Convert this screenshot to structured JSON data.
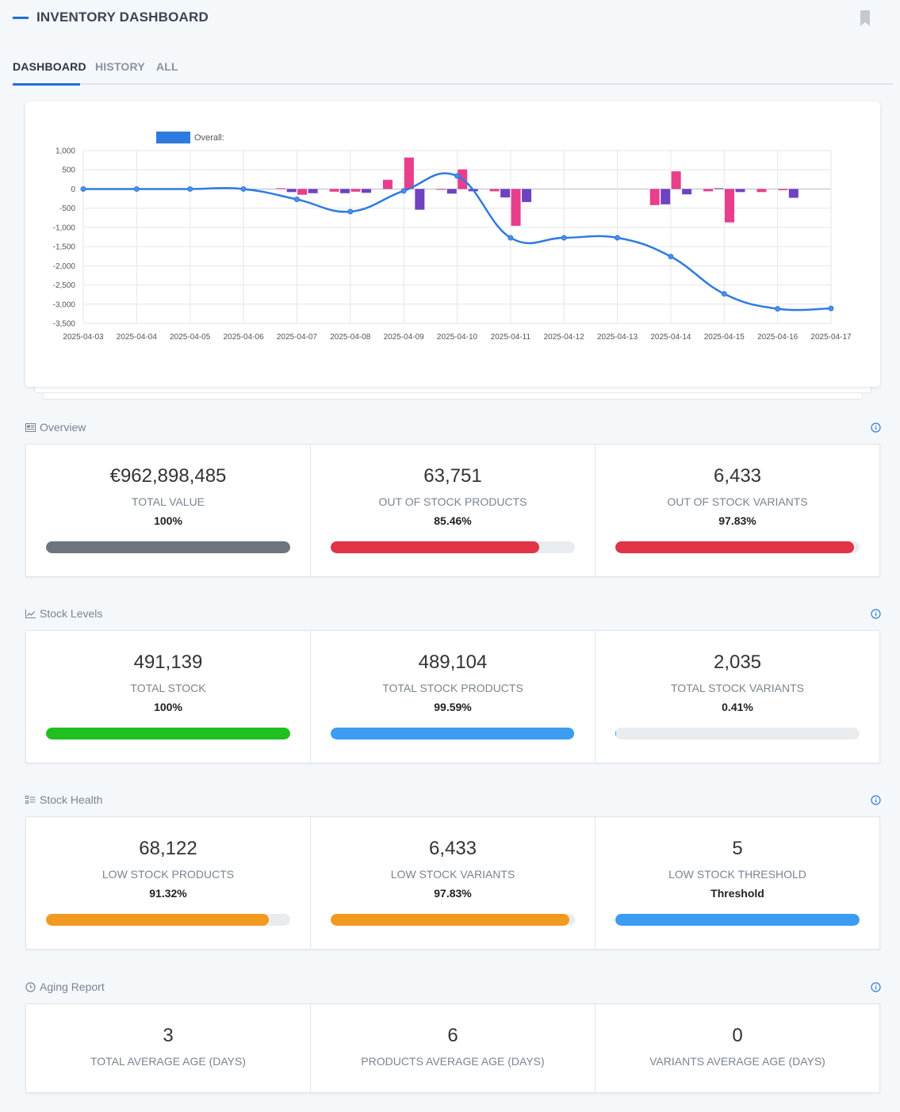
{
  "header": {
    "title": "INVENTORY DASHBOARD",
    "bookmark_icon": "bookmark-icon"
  },
  "tabs": [
    {
      "label": "DASHBOARD",
      "active": true
    },
    {
      "label": "HISTORY",
      "active": false
    },
    {
      "label": "ALL",
      "active": false
    }
  ],
  "chart_data": {
    "type": "bar+line",
    "legend": "Overall:",
    "categories": [
      "2025-04-03",
      "2025-04-04",
      "2025-04-05",
      "2025-04-06",
      "2025-04-07",
      "2025-04-08",
      "2025-04-09",
      "2025-04-10",
      "2025-04-11",
      "2025-04-12",
      "2025-04-13",
      "2025-04-14",
      "2025-04-15",
      "2025-04-16",
      "2025-04-17"
    ],
    "ylim": [
      -3500,
      1000
    ],
    "yticks": [
      1000,
      500,
      0,
      -500,
      -1000,
      -1500,
      -2000,
      -2500,
      -3000,
      -3500
    ],
    "ytick_labels": [
      "1,000",
      "500",
      "0",
      "-500",
      "-1,000",
      "-1,500",
      "-2,000",
      "-2,500",
      "-3,000",
      "-3,500"
    ],
    "line": {
      "name": "Overall",
      "color": "#2e7be0",
      "values": [
        0,
        0,
        0,
        0,
        -270,
        -590,
        -50,
        340,
        -1270,
        -1270,
        -1270,
        -1760,
        -2730,
        -3120,
        -3110
      ]
    },
    "bars": [
      {
        "x": 3.7,
        "value": 20,
        "color": "#e83e8c"
      },
      {
        "x": 3.9,
        "value": -80,
        "color": "#6f42c1"
      },
      {
        "x": 4.1,
        "value": -150,
        "color": "#e83e8c"
      },
      {
        "x": 4.3,
        "value": -110,
        "color": "#6f42c1"
      },
      {
        "x": 4.7,
        "value": -70,
        "color": "#e83e8c"
      },
      {
        "x": 4.9,
        "value": -110,
        "color": "#6f42c1"
      },
      {
        "x": 5.1,
        "value": -70,
        "color": "#e83e8c"
      },
      {
        "x": 5.3,
        "value": -100,
        "color": "#6f42c1"
      },
      {
        "x": 5.7,
        "value": 240,
        "color": "#e83e8c"
      },
      {
        "x": 6.1,
        "value": 820,
        "color": "#e83e8c"
      },
      {
        "x": 6.3,
        "value": -540,
        "color": "#6f42c1"
      },
      {
        "x": 6.7,
        "value": -20,
        "color": "#e83e8c"
      },
      {
        "x": 6.9,
        "value": -120,
        "color": "#6f42c1"
      },
      {
        "x": 7.1,
        "value": 510,
        "color": "#e83e8c"
      },
      {
        "x": 7.3,
        "value": -60,
        "color": "#6f42c1"
      },
      {
        "x": 7.7,
        "value": -60,
        "color": "#e83e8c"
      },
      {
        "x": 7.9,
        "value": -220,
        "color": "#6f42c1"
      },
      {
        "x": 8.1,
        "value": -960,
        "color": "#e83e8c"
      },
      {
        "x": 8.3,
        "value": -340,
        "color": "#6f42c1"
      },
      {
        "x": 10.7,
        "value": -420,
        "color": "#e83e8c"
      },
      {
        "x": 10.9,
        "value": -400,
        "color": "#6f42c1"
      },
      {
        "x": 11.1,
        "value": 460,
        "color": "#e83e8c"
      },
      {
        "x": 11.3,
        "value": -140,
        "color": "#6f42c1"
      },
      {
        "x": 11.7,
        "value": -60,
        "color": "#e83e8c"
      },
      {
        "x": 11.9,
        "value": 20,
        "color": "#6f42c1"
      },
      {
        "x": 12.1,
        "value": -870,
        "color": "#e83e8c"
      },
      {
        "x": 12.3,
        "value": -80,
        "color": "#6f42c1"
      },
      {
        "x": 12.7,
        "value": -80,
        "color": "#e83e8c"
      },
      {
        "x": 13.1,
        "value": -30,
        "color": "#e83e8c"
      },
      {
        "x": 13.3,
        "value": -230,
        "color": "#6f42c1"
      }
    ]
  },
  "sections": [
    {
      "title": "Overview",
      "icon": "newspaper-icon",
      "stats": [
        {
          "value": "€962,898,485",
          "label": "TOTAL VALUE",
          "pct": "100%",
          "fill": 1.0,
          "color": "#6c757d"
        },
        {
          "value": "63,751",
          "label": "OUT OF STOCK PRODUCTS",
          "pct": "85.46%",
          "fill": 0.8546,
          "color": "#e03346"
        },
        {
          "value": "6,433",
          "label": "OUT OF STOCK VARIANTS",
          "pct": "97.83%",
          "fill": 0.9783,
          "color": "#e03346"
        }
      ]
    },
    {
      "title": "Stock Levels",
      "icon": "line-chart-icon",
      "stats": [
        {
          "value": "491,139",
          "label": "TOTAL STOCK",
          "pct": "100%",
          "fill": 1.0,
          "color": "#1fc01f"
        },
        {
          "value": "489,104",
          "label": "TOTAL STOCK PRODUCTS",
          "pct": "99.59%",
          "fill": 0.9959,
          "color": "#3c9cf2"
        },
        {
          "value": "2,035",
          "label": "TOTAL STOCK VARIANTS",
          "pct": "0.41%",
          "fill": 0.0041,
          "color": "#3c9cf2"
        }
      ]
    },
    {
      "title": "Stock Health",
      "icon": "checklist-icon",
      "stats": [
        {
          "value": "68,122",
          "label": "LOW STOCK PRODUCTS",
          "pct": "91.32%",
          "fill": 0.9132,
          "color": "#f29a1f"
        },
        {
          "value": "6,433",
          "label": "LOW STOCK VARIANTS",
          "pct": "97.83%",
          "fill": 0.9783,
          "color": "#f29a1f"
        },
        {
          "value": "5",
          "label": "LOW STOCK THRESHOLD",
          "pct": "Threshold",
          "fill": 1.0,
          "color": "#3c9cf2"
        }
      ]
    },
    {
      "title": "Aging Report",
      "icon": "clock-icon",
      "stats": [
        {
          "value": "3",
          "label": "TOTAL AVERAGE AGE (DAYS)"
        },
        {
          "value": "6",
          "label": "PRODUCTS AVERAGE AGE (DAYS)"
        },
        {
          "value": "0",
          "label": "VARIANTS AVERAGE AGE (DAYS)"
        }
      ]
    }
  ]
}
